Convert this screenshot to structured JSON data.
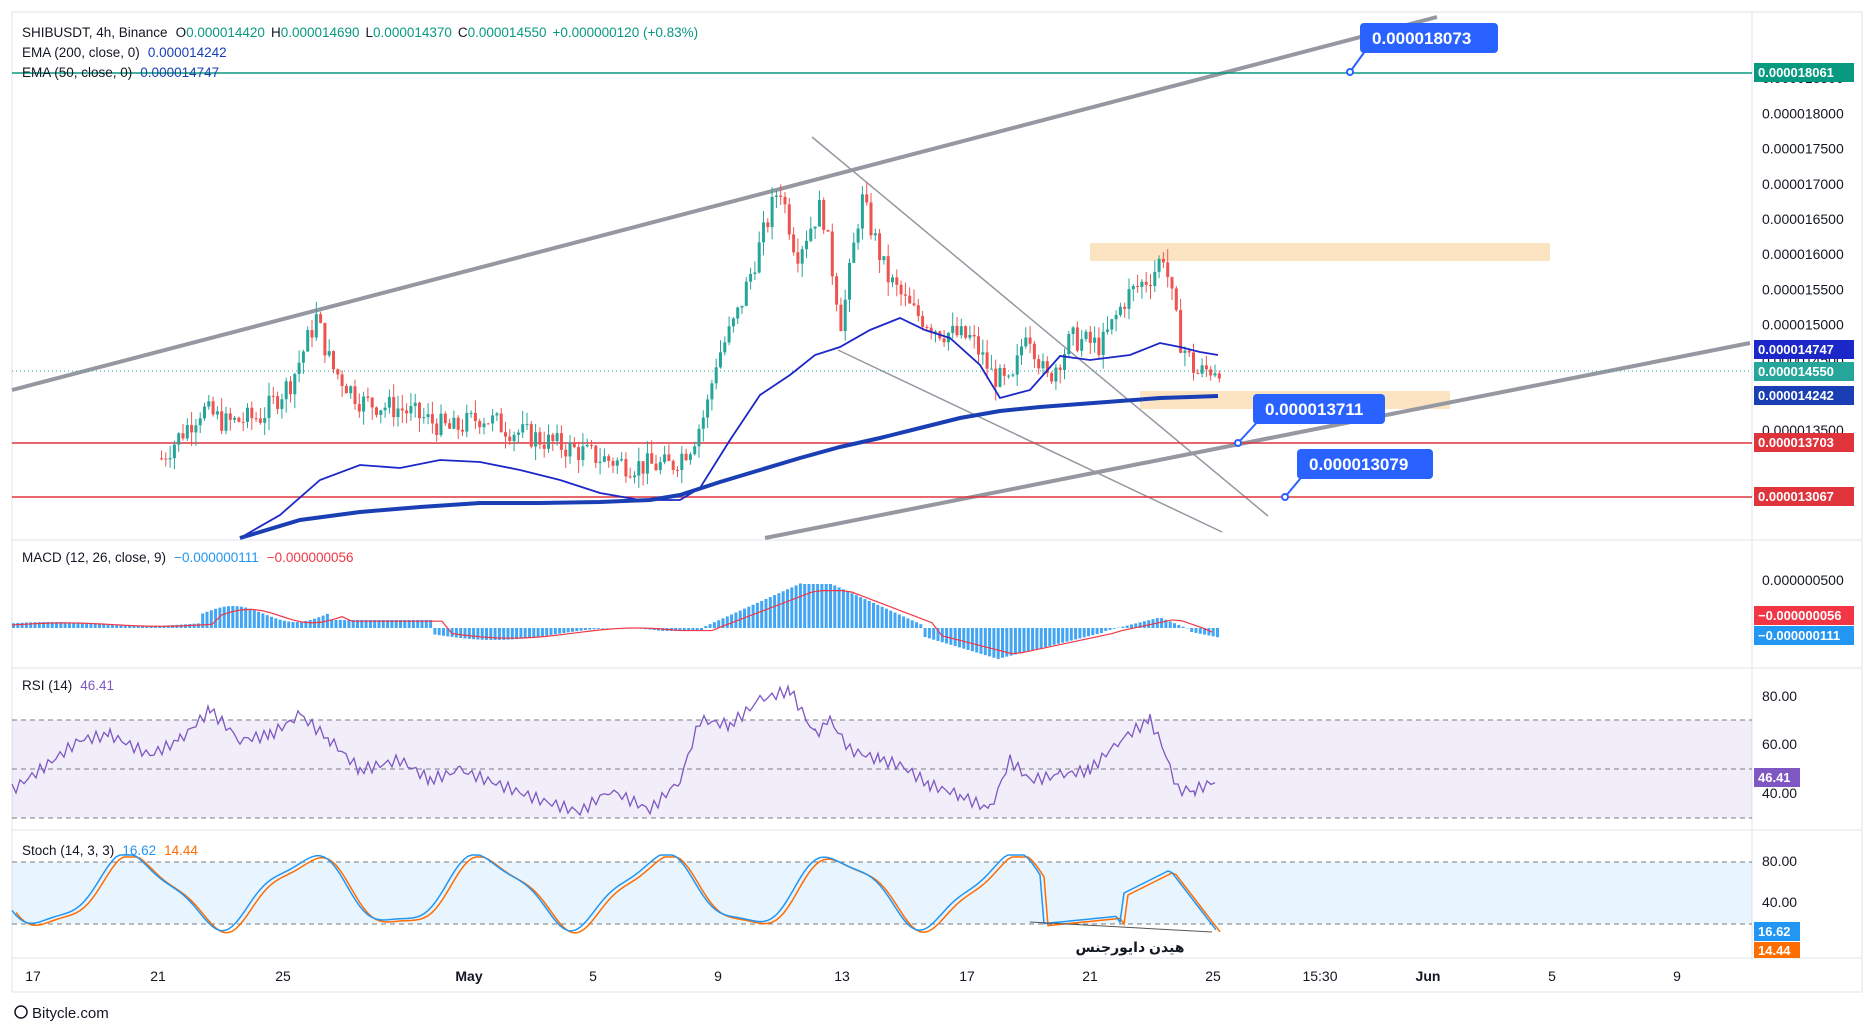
{
  "header": {
    "symbol_line": "SHIBUSDT, 4h, Binance",
    "ohlc": [
      {
        "k": "O",
        "v": "0.000014420"
      },
      {
        "k": "H",
        "v": "0.000014690"
      },
      {
        "k": "L",
        "v": "0.000014370"
      },
      {
        "k": "C",
        "v": "0.000014550"
      }
    ],
    "change": "+0.000000120 (+0.83%)",
    "ema200": {
      "label": "EMA (200, close, 0)",
      "value": "0.000014242"
    },
    "ema50": {
      "label": "EMA (50, close, 0)",
      "value": "0.000014747"
    }
  },
  "colors": {
    "up": "#26a69a",
    "down": "#ef5350",
    "ema50": "#1b27c9",
    "ema200": "#1a3fb5",
    "resistance": "#e0343d",
    "top_level": "#089981",
    "callout": "#2962ff",
    "zone": "#fbd9a8",
    "channel": "#9598a1",
    "macd": "#2196f3",
    "macd_signal": "#f23645",
    "rsi": "#7e57c2",
    "stoch_k": "#2196f3",
    "stoch_d": "#ff6d00"
  },
  "chart_data": [
    {
      "type": "candlestick",
      "title": "SHIBUSDT, 4h, Binance",
      "ylim": [
        1.29e-05,
        1.87e-05
      ],
      "yticks": [
        "0.000018500",
        "0.000018000",
        "0.000017500",
        "0.000017000",
        "0.000016500",
        "0.000016000",
        "0.000015500",
        "0.000015000",
        "0.000014500",
        "0.000014000",
        "0.000013500"
      ],
      "xticks": [
        "17",
        "21",
        "25",
        "May",
        "5",
        "9",
        "13",
        "17",
        "21",
        "25",
        "15:30",
        "Jun",
        "5",
        "9"
      ],
      "last_values": {
        "open": 1.442e-05,
        "high": 1.469e-05,
        "low": 1.437e-05,
        "close": 1.455e-05
      },
      "series": [
        {
          "name": "EMA (200, close, 0)",
          "last": 1.4242e-05
        },
        {
          "name": "EMA (50, close, 0)",
          "last": 1.4747e-05
        }
      ],
      "horizontal_levels": [
        {
          "value": 1.8061e-05,
          "label": "0.000018061"
        },
        {
          "value": 1.3703e-05,
          "label": "0.000013703"
        },
        {
          "value": 1.3067e-05,
          "label": "0.000013067"
        }
      ],
      "price_tags": [
        {
          "value": 1.4747e-05,
          "label": "0.000014747"
        },
        {
          "value": 1.455e-05,
          "label": "0.000014550"
        },
        {
          "value": 1.4242e-05,
          "label": "0.000014242"
        }
      ],
      "callouts": [
        "0.000018073",
        "0.000013711",
        "0.000013079"
      ],
      "zones": [
        {
          "from": 1.59e-05,
          "to": 1.61e-05
        },
        {
          "from": 1.41e-05,
          "to": 1.43e-05
        }
      ]
    },
    {
      "type": "histogram",
      "title": "MACD (12, 26, close, 9)",
      "values": [
        "−0.000000111",
        "−0.000000056"
      ],
      "yticks": [
        "0.000000500"
      ],
      "last_tags": [
        "−0.000000056",
        "−0.000000111"
      ]
    },
    {
      "type": "line",
      "title": "RSI (14)",
      "value": "46.41",
      "ylim": [
        20,
        90
      ],
      "yticks": [
        "80.00",
        "60.00",
        "40.00"
      ],
      "band": [
        30,
        70
      ],
      "last": 46.41
    },
    {
      "type": "line",
      "title": "Stoch (14, 3, 3)",
      "k": "16.62",
      "d": "14.44",
      "ylim": [
        0,
        100
      ],
      "yticks": [
        "80.00",
        "40.00"
      ],
      "band": [
        20,
        80
      ],
      "annotation": "هیدن دایورجنس"
    }
  ],
  "watermark": "Bitycle.com"
}
